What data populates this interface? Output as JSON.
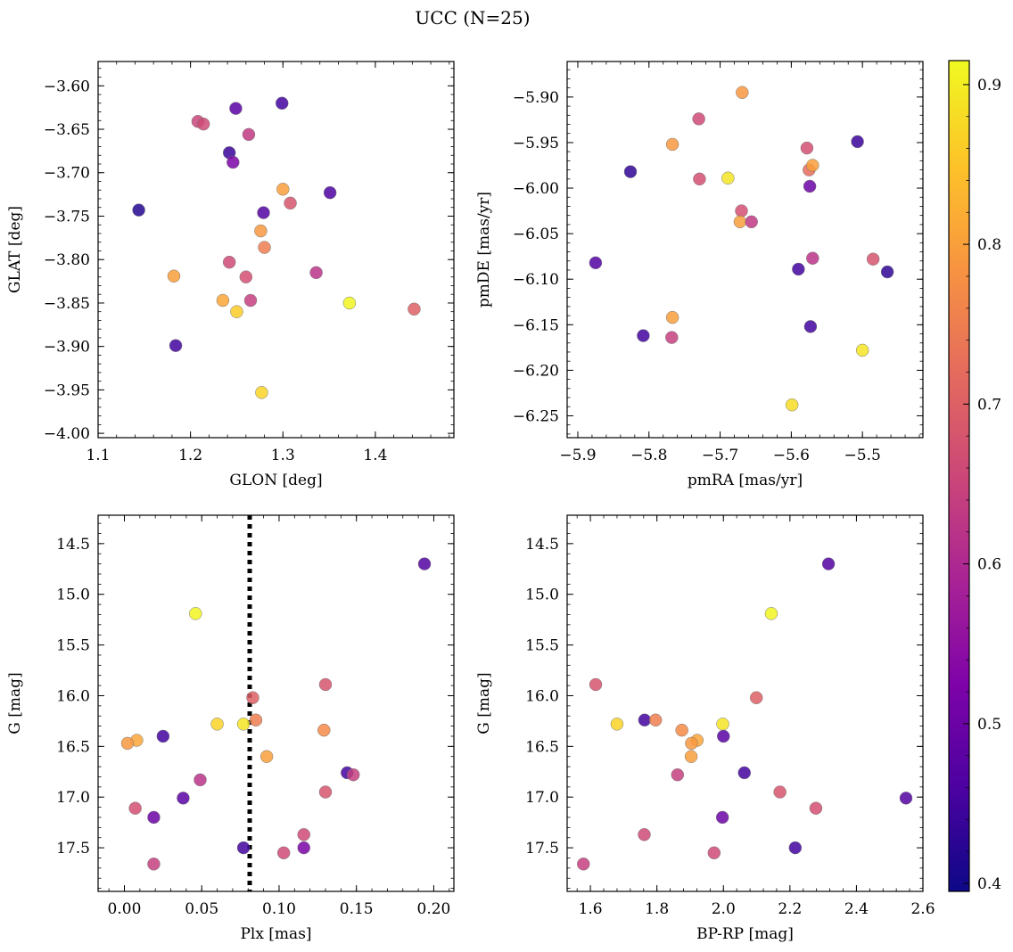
{
  "figure": {
    "title": "UCC (N=25)"
  },
  "colorbar": {
    "range": [
      0.395,
      0.915
    ],
    "ticks": [
      0.4,
      0.5,
      0.6,
      0.7,
      0.8,
      0.9
    ],
    "tick_labels": [
      "0.4",
      "0.5",
      "0.6",
      "0.7",
      "0.8",
      "0.9"
    ],
    "colormap": "plasma"
  },
  "chart_data": [
    {
      "type": "scatter",
      "xlabel": "GLON [deg]",
      "ylabel": "GLAT [deg]",
      "xlim": [
        1.1,
        1.485
      ],
      "ylim": [
        -4.005,
        -3.572
      ],
      "x_ticks": [
        1.1,
        1.2,
        1.3,
        1.4
      ],
      "x_tick_labels": [
        "1.1",
        "1.2",
        "1.3",
        "1.4"
      ],
      "y_ticks": [
        -3.6,
        -3.65,
        -3.7,
        -3.75,
        -3.8,
        -3.85,
        -3.9,
        -3.95,
        -4.0
      ],
      "y_tick_labels": [
        "−3.60",
        "−3.65",
        "−3.70",
        "−3.75",
        "−3.80",
        "−3.85",
        "−3.90",
        "−3.95",
        "−4.00"
      ],
      "x": [
        1.249,
        1.299,
        1.208,
        1.214,
        1.263,
        1.242,
        1.246,
        1.144,
        1.279,
        1.308,
        1.351,
        1.3,
        1.276,
        1.28,
        1.242,
        1.26,
        1.265,
        1.235,
        1.182,
        1.336,
        1.25,
        1.372,
        1.442,
        1.184,
        1.277
      ],
      "y": [
        -3.626,
        -3.62,
        -3.641,
        -3.644,
        -3.656,
        -3.677,
        -3.688,
        -3.743,
        -3.746,
        -3.735,
        -3.723,
        -3.719,
        -3.767,
        -3.786,
        -3.803,
        -3.82,
        -3.847,
        -3.847,
        -3.819,
        -3.815,
        -3.86,
        -3.85,
        -3.857,
        -3.899,
        -3.953
      ],
      "color_values": [
        0.48,
        0.45,
        0.65,
        0.66,
        0.63,
        0.44,
        0.52,
        0.42,
        0.47,
        0.68,
        0.46,
        0.8,
        0.79,
        0.75,
        0.66,
        0.67,
        0.64,
        0.81,
        0.8,
        0.62,
        0.86,
        0.91,
        0.7,
        0.45,
        0.87
      ]
    },
    {
      "type": "scatter",
      "xlabel": "pmRA [mas/yr]",
      "ylabel": "pmDE [mas/yr]",
      "xlim": [
        -5.915,
        -5.415
      ],
      "ylim": [
        -6.274,
        -5.861
      ],
      "x_ticks": [
        -5.9,
        -5.8,
        -5.7,
        -5.6,
        -5.5
      ],
      "x_tick_labels": [
        "−5.9",
        "−5.8",
        "−5.7",
        "−5.6",
        "−5.5"
      ],
      "y_ticks": [
        -5.9,
        -5.95,
        -6.0,
        -6.05,
        -6.1,
        -6.15,
        -6.2,
        -6.25
      ],
      "y_tick_labels": [
        "−5.90",
        "−5.95",
        "−6.00",
        "−6.05",
        "−6.10",
        "−6.15",
        "−6.20",
        "−6.25"
      ],
      "x": [
        -5.669,
        -5.73,
        -5.767,
        -5.826,
        -5.729,
        -5.689,
        -5.578,
        -5.575,
        -5.57,
        -5.507,
        -5.574,
        -5.67,
        -5.672,
        -5.656,
        -5.875,
        -5.59,
        -5.57,
        -5.485,
        -5.465,
        -5.767,
        -5.808,
        -5.768,
        -5.573,
        -5.5,
        -5.599
      ],
      "y": [
        -5.895,
        -5.924,
        -5.952,
        -5.982,
        -5.99,
        -5.989,
        -5.956,
        -5.98,
        -5.975,
        -5.949,
        -5.998,
        -6.025,
        -6.037,
        -6.037,
        -6.082,
        -6.089,
        -6.077,
        -6.078,
        -6.092,
        -6.142,
        -6.162,
        -6.164,
        -6.152,
        -6.178,
        -6.238
      ],
      "color_values": [
        0.79,
        0.66,
        0.79,
        0.43,
        0.67,
        0.89,
        0.67,
        0.72,
        0.8,
        0.44,
        0.5,
        0.67,
        0.8,
        0.63,
        0.47,
        0.45,
        0.62,
        0.68,
        0.43,
        0.8,
        0.45,
        0.64,
        0.45,
        0.89,
        0.88
      ]
    },
    {
      "type": "scatter",
      "xlabel": "Plx [mas]",
      "ylabel": "G [mag]",
      "xlim": [
        -0.017,
        0.213
      ],
      "ylim": [
        17.93,
        14.22
      ],
      "y_inverted": true,
      "vline": {
        "x": 0.081,
        "style": "dotted",
        "color": "#000000"
      },
      "x_ticks": [
        0.0,
        0.05,
        0.1,
        0.15,
        0.2
      ],
      "x_tick_labels": [
        "0.00",
        "0.05",
        "0.10",
        "0.15",
        "0.20"
      ],
      "y_ticks": [
        14.5,
        15.0,
        15.5,
        16.0,
        16.5,
        17.0,
        17.5
      ],
      "y_tick_labels": [
        "14.5",
        "15.0",
        "15.5",
        "16.0",
        "16.5",
        "17.0",
        "17.5"
      ],
      "x": [
        0.194,
        0.046,
        0.13,
        0.083,
        0.085,
        0.06,
        0.077,
        0.129,
        0.025,
        0.008,
        0.002,
        0.092,
        0.144,
        0.148,
        0.049,
        0.13,
        0.038,
        0.007,
        0.019,
        0.116,
        0.019,
        0.077,
        0.103,
        0.116
      ],
      "y": [
        14.7,
        15.19,
        15.89,
        16.02,
        16.24,
        16.28,
        16.28,
        16.34,
        16.4,
        16.44,
        16.47,
        16.6,
        16.76,
        16.78,
        16.83,
        16.95,
        17.01,
        17.11,
        17.2,
        17.37,
        17.66,
        17.5,
        17.55,
        17.5
      ],
      "color_values": [
        0.47,
        0.91,
        0.68,
        0.7,
        0.75,
        0.87,
        0.89,
        0.77,
        0.45,
        0.81,
        0.79,
        0.8,
        0.45,
        0.64,
        0.62,
        0.68,
        0.48,
        0.67,
        0.5,
        0.66,
        0.64,
        0.45,
        0.66,
        0.52
      ]
    },
    {
      "type": "scatter",
      "xlabel": "BP-RP [mag]",
      "ylabel": "G [mag]",
      "xlim": [
        1.53,
        2.6
      ],
      "ylim": [
        17.93,
        14.22
      ],
      "y_inverted": true,
      "x_ticks": [
        1.6,
        1.8,
        2.0,
        2.2,
        2.4,
        2.6
      ],
      "x_tick_labels": [
        "1.6",
        "1.8",
        "2.0",
        "2.2",
        "2.4",
        "2.6"
      ],
      "y_ticks": [
        14.5,
        15.0,
        15.5,
        16.0,
        16.5,
        17.0,
        17.5
      ],
      "y_tick_labels": [
        "14.5",
        "15.0",
        "15.5",
        "16.0",
        "16.5",
        "17.0",
        "17.5"
      ],
      "x": [
        2.316,
        2.144,
        1.616,
        2.099,
        1.763,
        1.796,
        1.68,
        1.998,
        1.875,
        2.0,
        1.921,
        1.904,
        1.903,
        2.063,
        1.862,
        2.17,
        2.549,
        2.278,
        1.997,
        1.762,
        2.216,
        1.579,
        1.972
      ],
      "y": [
        14.7,
        15.19,
        15.89,
        16.02,
        16.24,
        16.24,
        16.28,
        16.28,
        16.34,
        16.4,
        16.44,
        16.47,
        16.6,
        16.76,
        16.78,
        16.95,
        17.01,
        17.11,
        17.2,
        17.37,
        17.5,
        17.66,
        17.55
      ],
      "color_values": [
        0.47,
        0.91,
        0.68,
        0.7,
        0.45,
        0.75,
        0.87,
        0.89,
        0.77,
        0.48,
        0.81,
        0.79,
        0.8,
        0.45,
        0.64,
        0.68,
        0.47,
        0.67,
        0.5,
        0.66,
        0.45,
        0.64,
        0.66
      ]
    }
  ]
}
